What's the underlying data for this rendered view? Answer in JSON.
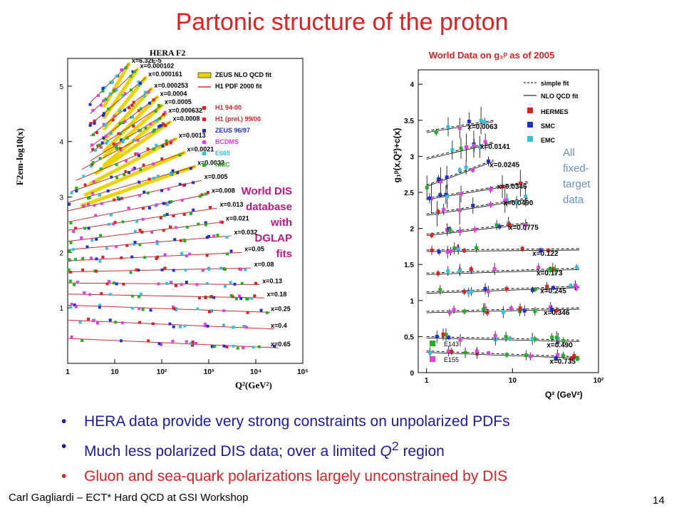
{
  "title": "Partonic structure of the proton",
  "footer": "Carl Gagliardi – ECT* Hard QCD at GSI Workshop",
  "page_number": "14",
  "bullets": [
    {
      "pre": "HERA data provide very strong constraints on unpolarized PDFs",
      "q": "",
      "post": ""
    },
    {
      "pre": "Much less polarized DIS data; over a limited ",
      "q": "Q",
      "sup": "2",
      "post": " region"
    },
    {
      "pre": "Gluon and sea-quark polarizations largely unconstrained by DIS",
      "q": "",
      "post": ""
    }
  ],
  "notes": {
    "dis": [
      "World DIS",
      "database",
      "with",
      "DGLAP",
      "fits"
    ],
    "fixed_target": [
      "All",
      "fixed-",
      "target",
      "data"
    ]
  },
  "colors": {
    "title": "#e02020",
    "blue_text": "#1a1aa6",
    "dis_note": "#c71585",
    "ft_note": "#6a8ec8"
  },
  "chart_data": [
    {
      "type": "scatter",
      "title": "HERA F2",
      "xlabel": "Q²(GeV²)",
      "ylabel": "F2em-log10(x)",
      "xscale": "log",
      "xlim": [
        1,
        100000
      ],
      "ylim": [
        0,
        5.5
      ],
      "x_ticks": [
        "1",
        "10",
        "10²",
        "10³",
        "10⁴",
        "10⁵"
      ],
      "y_ticks": [
        "1",
        "2",
        "3",
        "4",
        "5"
      ],
      "legend": [
        "ZEUS NLO QCD fit",
        "H1 PDF 2000 fit",
        "H1 94-00",
        "H1 (prel.) 99/00",
        "ZEUS 96/97",
        "BCDMS",
        "E665",
        "NMC"
      ],
      "legend_colors": [
        "#e8d400",
        "#d03030",
        "#e02020",
        "#e02020",
        "#2030d0",
        "#e040e0",
        "#30c0e0",
        "#20b020"
      ],
      "bin_labels": [
        "x=6.32E-5",
        "x=0.000102",
        "x=0.000161",
        "x=0.000253",
        "x=0.0004",
        "x=0.0005",
        "x=0.000632",
        "x=0.0008",
        "x=0.0013",
        "x=0.0021",
        "x=0.0032",
        "x=0.005",
        "x=0.008",
        "x=0.013",
        "x=0.021",
        "x=0.032",
        "x=0.05",
        "x=0.08",
        "x=0.13",
        "x=0.18",
        "x=0.25",
        "x=0.4",
        "x=0.65"
      ],
      "bins": [
        {
          "x0": 3,
          "x1": 20,
          "y0": 4.7,
          "y1": 5.4
        },
        {
          "x0": 3,
          "x1": 30,
          "y0": 4.5,
          "y1": 5.3
        },
        {
          "x0": 3,
          "x1": 45,
          "y0": 4.3,
          "y1": 5.15
        },
        {
          "x0": 3,
          "x1": 60,
          "y0": 4.1,
          "y1": 4.95
        },
        {
          "x0": 3,
          "x1": 80,
          "y0": 3.9,
          "y1": 4.8
        },
        {
          "x0": 3,
          "x1": 100,
          "y0": 3.8,
          "y1": 4.65
        },
        {
          "x0": 3,
          "x1": 120,
          "y0": 3.65,
          "y1": 4.5
        },
        {
          "x0": 2,
          "x1": 150,
          "y0": 3.5,
          "y1": 4.35
        },
        {
          "x0": 1.5,
          "x1": 200,
          "y0": 3.3,
          "y1": 4.05
        },
        {
          "x0": 1.2,
          "x1": 300,
          "y0": 3.1,
          "y1": 3.8
        },
        {
          "x0": 1.0,
          "x1": 500,
          "y0": 2.9,
          "y1": 3.55
        },
        {
          "x0": 1.0,
          "x1": 700,
          "y0": 2.75,
          "y1": 3.3
        },
        {
          "x0": 1.0,
          "x1": 1000,
          "y0": 2.55,
          "y1": 3.05
        },
        {
          "x0": 1.0,
          "x1": 1500,
          "y0": 2.4,
          "y1": 2.8
        },
        {
          "x0": 1.0,
          "x1": 2000,
          "y0": 2.2,
          "y1": 2.55
        },
        {
          "x0": 1.0,
          "x1": 3000,
          "y0": 2.05,
          "y1": 2.3
        },
        {
          "x0": 1.0,
          "x1": 5000,
          "y0": 1.85,
          "y1": 2.0
        },
        {
          "x0": 1.0,
          "x1": 8000,
          "y0": 1.65,
          "y1": 1.72
        },
        {
          "x0": 1.0,
          "x1": 12000,
          "y0": 1.45,
          "y1": 1.42
        },
        {
          "x0": 1.0,
          "x1": 15000,
          "y0": 1.25,
          "y1": 1.18
        },
        {
          "x0": 1.0,
          "x1": 20000,
          "y0": 1.05,
          "y1": 0.92
        },
        {
          "x0": 1.0,
          "x1": 25000,
          "y0": 0.78,
          "y1": 0.62
        },
        {
          "x0": 1.0,
          "x1": 30000,
          "y0": 0.45,
          "y1": 0.28
        }
      ]
    },
    {
      "type": "scatter",
      "title": "World Data on g₁ᵖ as of 2005",
      "xlabel": "Q² (GeV²)",
      "ylabel": "g₁ᵖ(x,Q²)+c(x)",
      "xscale": "log",
      "xlim": [
        0.8,
        100
      ],
      "ylim": [
        0,
        4.2
      ],
      "x_ticks": [
        "1",
        "10",
        "10²"
      ],
      "y_ticks": [
        "0",
        "0.5",
        "1",
        "1.5",
        "2",
        "2.5",
        "3",
        "3.5",
        "4"
      ],
      "legend": [
        "simple fit",
        "NLO QCD fit",
        "HERMES",
        "SMC",
        "EMC",
        "E143",
        "E155"
      ],
      "legend_colors": [
        "#000000",
        "#000000",
        "#e02020",
        "#2030d0",
        "#30c0e0",
        "#20b020",
        "#e040e0"
      ],
      "bin_labels": [
        "x=0.0063",
        "x=0.0141",
        "x=0.0245",
        "x=0.0346",
        "x=0.0490",
        "x=0.0775",
        "x=0.122",
        "x=0.173",
        "x=0.245",
        "x=0.346",
        "x=0.490",
        "x=0.735"
      ],
      "bins": [
        {
          "y0": 3.35,
          "y1": 3.5
        },
        {
          "y0": 2.98,
          "y1": 3.2
        },
        {
          "y0": 2.6,
          "y1": 2.95
        },
        {
          "y0": 2.42,
          "y1": 2.65
        },
        {
          "y0": 2.2,
          "y1": 2.42
        },
        {
          "y0": 1.92,
          "y1": 2.08
        },
        {
          "y0": 1.7,
          "y1": 1.72
        },
        {
          "y0": 1.38,
          "y1": 1.45
        },
        {
          "y0": 1.12,
          "y1": 1.2
        },
        {
          "y0": 0.85,
          "y1": 0.9
        },
        {
          "y0": 0.5,
          "y1": 0.45
        },
        {
          "y0": 0.3,
          "y1": 0.22
        }
      ]
    }
  ]
}
